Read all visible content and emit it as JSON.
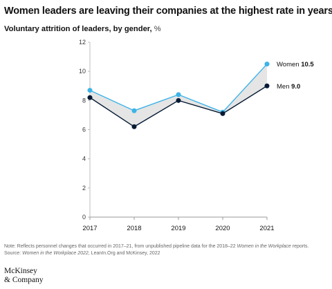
{
  "title": "Women leaders are leaving their companies at the highest rate in years.",
  "subtitle": {
    "main": "Voluntary attrition of leaders, by gender,",
    "unit": "%"
  },
  "chart_data": {
    "type": "line",
    "categories": [
      "2017",
      "2018",
      "2019",
      "2020",
      "2021"
    ],
    "series": [
      {
        "name": "Women",
        "values": [
          8.7,
          7.3,
          8.4,
          7.2,
          10.5
        ],
        "color": "#3db3e8",
        "end_label": "Women",
        "end_value": "10.5"
      },
      {
        "name": "Men",
        "values": [
          8.2,
          6.2,
          8.0,
          7.1,
          9.0
        ],
        "color": "#061a34",
        "end_label": "Men",
        "end_value": "9.0"
      }
    ],
    "ylim": [
      0,
      12
    ],
    "yticks": [
      0,
      2,
      4,
      6,
      8,
      10,
      12
    ],
    "gap_fill_color": "#e5e5e5",
    "grid": false
  },
  "note": {
    "line1_a": "Note: Reflects personnel changes that occurred in 2017–21, from unpublished pipeline data for the 2018–22 ",
    "line1_em": "Women in the Workplace",
    "line1_b": " reports.",
    "line2_a": "Source: ",
    "line2_em": "Women in the Workplace 2022",
    "line2_b": ", LeanIn.Org and McKinsey, 2022"
  },
  "logo": {
    "line1": "McKinsey",
    "line2": "& Company"
  }
}
